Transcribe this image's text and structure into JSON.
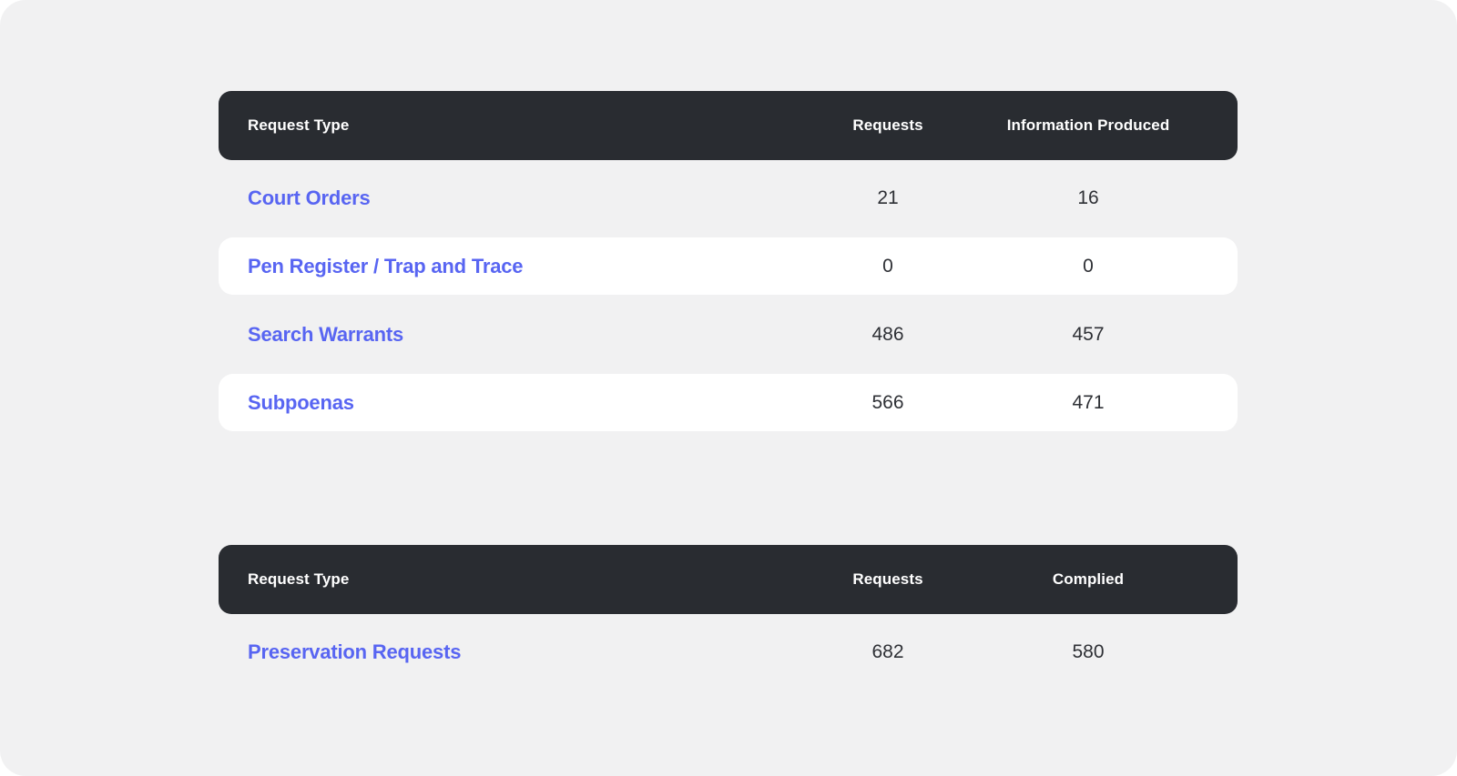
{
  "colors": {
    "canvas_background": "#f1f1f2",
    "outer_background": "#ffffff",
    "header_background": "#292c31",
    "header_text": "#ffffff",
    "link_text": "#5865f2",
    "value_text": "#2e3035",
    "white_row": "#ffffff"
  },
  "tables": [
    {
      "columns": [
        "Request Type",
        "Requests",
        "Information Produced"
      ],
      "rows": [
        {
          "label": "Court Orders",
          "requests": "21",
          "produced": "16"
        },
        {
          "label": "Pen Register / Trap and Trace",
          "requests": "0",
          "produced": "0"
        },
        {
          "label": "Search Warrants",
          "requests": "486",
          "produced": "457"
        },
        {
          "label": "Subpoenas",
          "requests": "566",
          "produced": "471"
        }
      ]
    },
    {
      "columns": [
        "Request Type",
        "Requests",
        "Complied"
      ],
      "rows": [
        {
          "label": "Preservation Requests",
          "requests": "682",
          "produced": "580"
        }
      ]
    }
  ]
}
